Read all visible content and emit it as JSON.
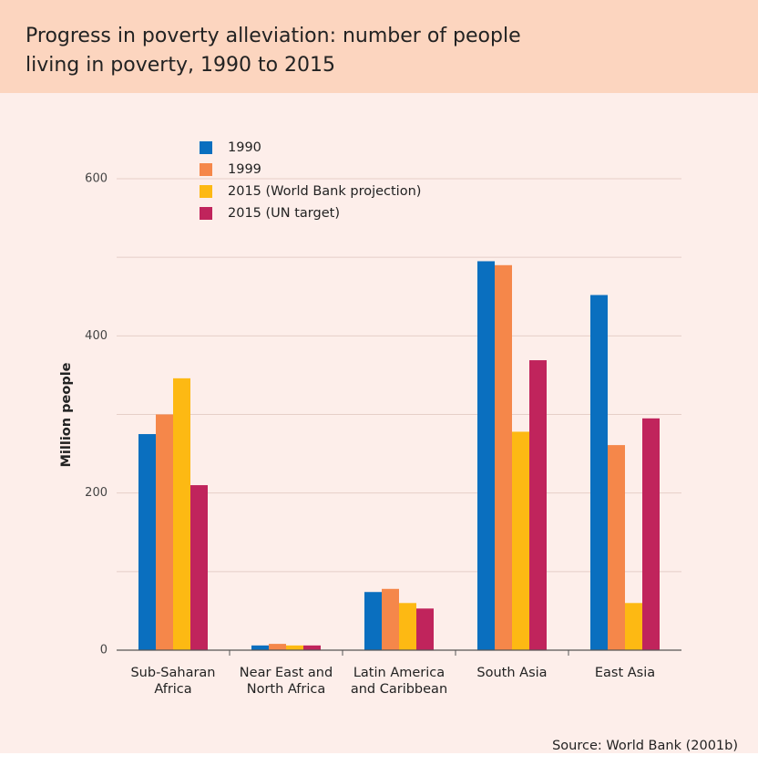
{
  "chart_data": {
    "type": "bar",
    "title": "Progress in poverty alleviation: number of people living in poverty, 1990 to 2015",
    "ylabel": "Million people",
    "source": "Source: World Bank (2001b)",
    "categories": [
      [
        "Sub-Saharan",
        "Africa"
      ],
      [
        "Near East and",
        "North Africa"
      ],
      [
        "Latin America",
        "and Caribbean"
      ],
      [
        "South Asia"
      ],
      [
        "East Asia"
      ]
    ],
    "series": [
      {
        "name": "1990",
        "color": "#0a6fbf",
        "values": [
          275,
          6,
          74,
          495,
          452
        ]
      },
      {
        "name": "1999",
        "color": "#f5874a",
        "values": [
          300,
          8,
          78,
          490,
          261
        ]
      },
      {
        "name": "2015 (World Bank projection)",
        "color": "#fdb913",
        "values": [
          346,
          6,
          60,
          278,
          60
        ]
      },
      {
        "name": "2015 (UN target)",
        "color": "#c0245c",
        "values": [
          210,
          6,
          53,
          369,
          295
        ]
      }
    ],
    "ylim": [
      0,
      600
    ],
    "yticks": [
      0,
      200,
      400,
      600
    ],
    "minor_yticks": [
      100,
      300,
      500
    ],
    "grid": true,
    "legend": "upper left"
  }
}
